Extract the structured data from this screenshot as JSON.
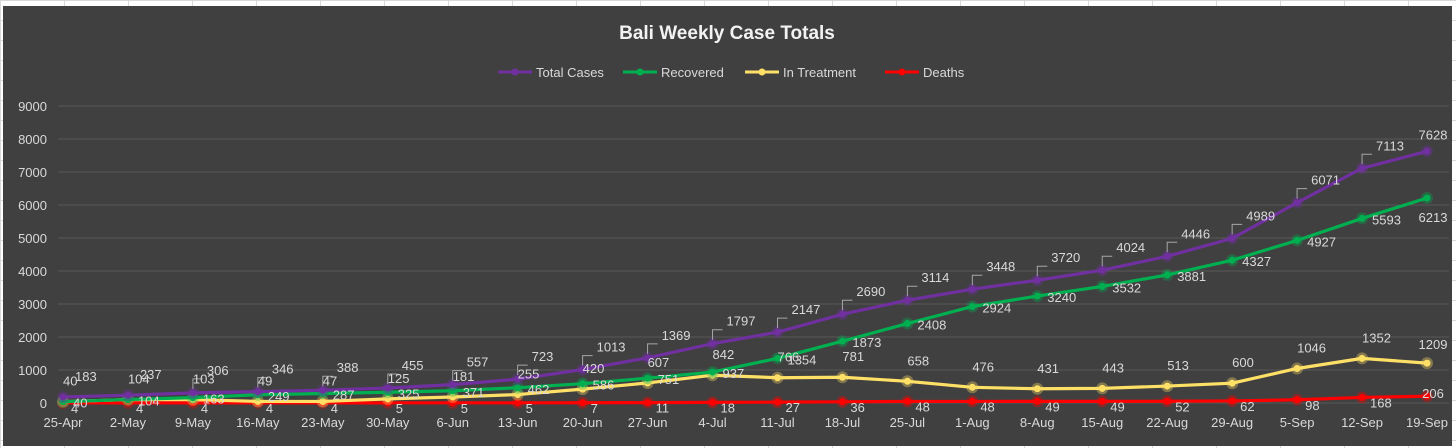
{
  "chart_data": {
    "type": "line",
    "title": "Bali Weekly Case Totals",
    "xlabel": "",
    "ylabel": "",
    "ylim": [
      0,
      9000
    ],
    "yticks": [
      0,
      1000,
      2000,
      3000,
      4000,
      5000,
      6000,
      7000,
      8000,
      9000
    ],
    "grid": true,
    "legend": "top",
    "categories": [
      "25-Apr",
      "2-May",
      "9-May",
      "16-May",
      "23-May",
      "30-May",
      "6-Jun",
      "13-Jun",
      "20-Jun",
      "27-Jun",
      "4-Jul",
      "11-Jul",
      "18-Jul",
      "25-Jul",
      "1-Aug",
      "8-Aug",
      "15-Aug",
      "22-Aug",
      "29-Aug",
      "5-Sep",
      "12-Sep",
      "19-Sep"
    ],
    "series": [
      {
        "name": "Total Cases",
        "color": "#7030a0",
        "values": [
          183,
          237,
          306,
          346,
          388,
          455,
          557,
          723,
          1013,
          1369,
          1797,
          2147,
          2690,
          3114,
          3448,
          3720,
          4024,
          4446,
          4989,
          6071,
          7113,
          7628
        ]
      },
      {
        "name": "Recovered",
        "color": "#00b050",
        "values": [
          40,
          104,
          163,
          249,
          287,
          325,
          371,
          462,
          586,
          751,
          937,
          1354,
          1873,
          2408,
          2924,
          3240,
          3532,
          3881,
          4327,
          4927,
          5593,
          6213
        ]
      },
      {
        "name": "In Treatment",
        "color": "#ffe066",
        "values": [
          40,
          104,
          103,
          49,
          47,
          125,
          181,
          255,
          420,
          607,
          842,
          766,
          781,
          658,
          476,
          431,
          443,
          513,
          600,
          1046,
          1352,
          1209
        ]
      },
      {
        "name": "Deaths",
        "color": "#ff0000",
        "values": [
          4,
          4,
          4,
          4,
          4,
          5,
          5,
          5,
          7,
          11,
          18,
          27,
          36,
          48,
          48,
          49,
          49,
          52,
          62,
          98,
          168,
          206
        ]
      }
    ]
  }
}
